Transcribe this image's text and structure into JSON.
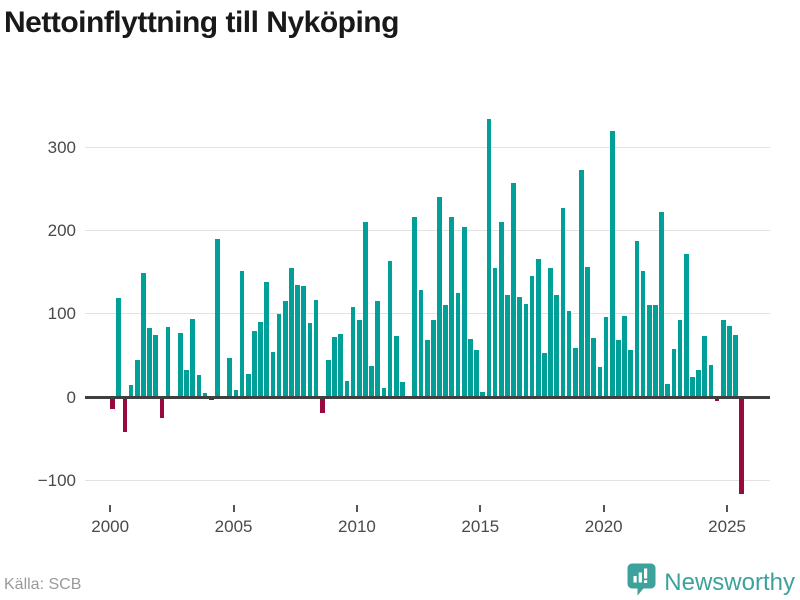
{
  "header": {
    "title": "Nettoinflyttning till Nyköping"
  },
  "footer": {
    "source_label": "Källa: SCB",
    "brand_name": "Newsworthy"
  },
  "colors": {
    "positive_bar": "#00a099",
    "negative_bar": "#98093e",
    "brand_teal": "#3da29b",
    "axis_text": "#4a4a4a",
    "gridline": "#e2e2e2",
    "zero_line": "#3f3f3f"
  },
  "chart_data": {
    "type": "bar",
    "title": "Nettoinflyttning till Nyköping",
    "source": "Källa: SCB",
    "x_unit": "quarter",
    "x_start": "2000Q1",
    "x_end": "2025Q3",
    "frequency": "quarterly",
    "grid": true,
    "legend": "none",
    "ylim": [
      -130,
      350
    ],
    "y_ticks": [
      300,
      200,
      100,
      0,
      -100
    ],
    "y_tick_labels": [
      "300",
      "200",
      "100",
      "0",
      "−100"
    ],
    "x_tick_years": [
      2000,
      2005,
      2010,
      2015,
      2020,
      2025
    ],
    "x_tick_labels": [
      "2000",
      "2005",
      "2010",
      "2015",
      "2020",
      "2025"
    ],
    "series": [
      {
        "name": "Nettoinflyttning",
        "values": [
          -14,
          118,
          -42,
          14,
          44,
          148,
          82,
          74,
          -25,
          84,
          1,
          76,
          32,
          93,
          26,
          4,
          -3,
          189,
          1,
          46,
          8,
          151,
          27,
          79,
          89,
          138,
          53,
          99,
          115,
          154,
          134,
          133,
          88,
          116,
          -19,
          44,
          72,
          75,
          19,
          108,
          92,
          209,
          37,
          115,
          10,
          163,
          73,
          18,
          1,
          215,
          128,
          68,
          92,
          240,
          110,
          215,
          124,
          204,
          69,
          56,
          6,
          333,
          154,
          209,
          122,
          256,
          119,
          111,
          145,
          165,
          52,
          154,
          122,
          226,
          103,
          58,
          272,
          155,
          70,
          36,
          95,
          319,
          68,
          97,
          56,
          187,
          151,
          110,
          110,
          221,
          15,
          57,
          92,
          171,
          23,
          32,
          73,
          38,
          -4,
          92,
          85,
          74,
          -116
        ]
      }
    ]
  }
}
